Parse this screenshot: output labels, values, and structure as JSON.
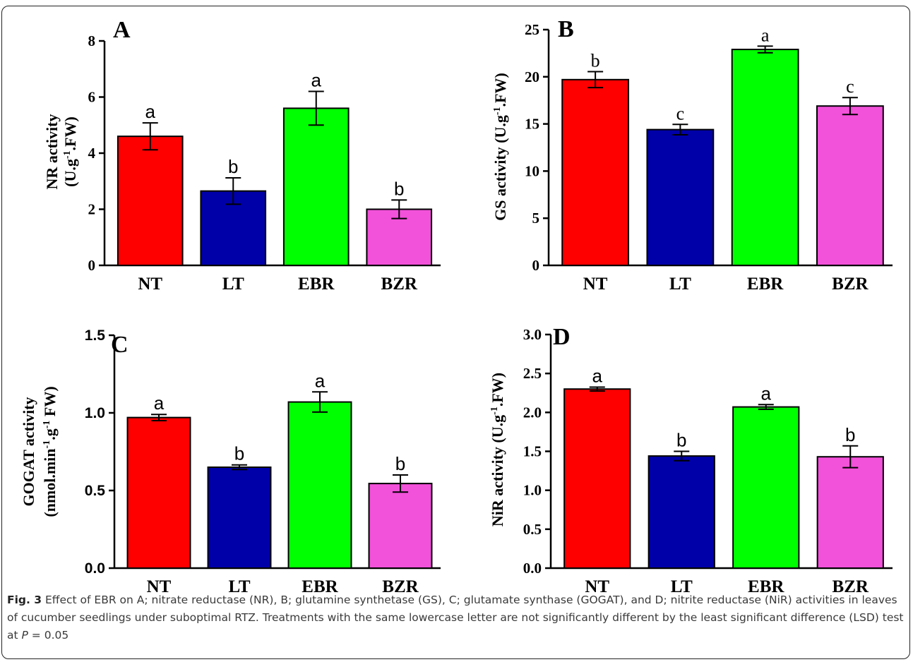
{
  "chart_data": [
    {
      "type": "bar",
      "panel_label": "A",
      "categories": [
        "NT",
        "LT",
        "EBR",
        "BZR"
      ],
      "values": [
        4.6,
        2.65,
        5.6,
        2.0
      ],
      "errors": [
        0.48,
        0.47,
        0.6,
        0.33
      ],
      "letters": [
        "a",
        "b",
        "a",
        "b"
      ],
      "colors": [
        "#fe0000",
        "#0000a9",
        "#00ff00",
        "#f251da"
      ],
      "ylabel_line1": "NR activity",
      "ylabel_line2_pre": "(U.g",
      "ylabel_line2_sup": "-1",
      "ylabel_line2_post": ".FW)",
      "ylim": [
        0,
        8
      ],
      "yticks": [
        0,
        2,
        4,
        6,
        8
      ],
      "tick_labels": [
        "0",
        "2",
        "4",
        "6",
        "8"
      ]
    },
    {
      "type": "bar",
      "panel_label": "B",
      "categories": [
        "NT",
        "LT",
        "EBR",
        "BZR"
      ],
      "values": [
        19.7,
        14.4,
        22.9,
        16.9
      ],
      "errors": [
        0.85,
        0.55,
        0.35,
        0.9
      ],
      "letters": [
        "b",
        "c",
        "a",
        "c"
      ],
      "colors": [
        "#fe0000",
        "#0000a9",
        "#00ff00",
        "#f251da"
      ],
      "ylabel_pre": "GS activity (U.g",
      "ylabel_sup": "-1",
      "ylabel_post": ".FW)",
      "ylim": [
        0,
        25
      ],
      "yticks": [
        0,
        5,
        10,
        15,
        20,
        25
      ],
      "tick_labels": [
        "0",
        "5",
        "10",
        "15",
        "20",
        "25"
      ]
    },
    {
      "type": "bar",
      "panel_label": "C",
      "categories": [
        "NT",
        "LT",
        "EBR",
        "BZR"
      ],
      "values": [
        0.97,
        0.65,
        1.07,
        0.545
      ],
      "errors": [
        0.02,
        0.015,
        0.065,
        0.055
      ],
      "letters": [
        "a",
        "b",
        "a",
        "b"
      ],
      "colors": [
        "#fe0000",
        "#0000a9",
        "#00ff00",
        "#f251da"
      ],
      "ylabel_line1": "GOGAT activity",
      "ylabel_line2_pre": "(nmol.min",
      "ylabel_line2_sup1": "-1",
      "ylabel_line2_mid": ".g",
      "ylabel_line2_sup2": "-1",
      "ylabel_line2_post": " FW)",
      "ylim": [
        0,
        1.5
      ],
      "yticks": [
        0,
        0.5,
        1.0,
        1.5
      ],
      "tick_labels": [
        "0.0",
        "0.5",
        "1.0",
        "1.5"
      ]
    },
    {
      "type": "bar",
      "panel_label": "D",
      "categories": [
        "NT",
        "LT",
        "EBR",
        "BZR"
      ],
      "values": [
        2.3,
        1.44,
        2.07,
        1.43
      ],
      "errors": [
        0.025,
        0.06,
        0.03,
        0.14
      ],
      "letters": [
        "a",
        "b",
        "a",
        "b"
      ],
      "colors": [
        "#fe0000",
        "#0000a9",
        "#00ff00",
        "#f251da"
      ],
      "ylabel_pre": "NiR activity (U.g",
      "ylabel_sup": "-1",
      "ylabel_post": ".FW)",
      "ylim": [
        0,
        3.0
      ],
      "yticks": [
        0,
        0.5,
        1.0,
        1.5,
        2.0,
        2.5,
        3.0
      ],
      "tick_labels": [
        "0.0",
        "0.5",
        "1.0",
        "1.5",
        "2.0",
        "2.5",
        "3.0"
      ]
    }
  ],
  "caption": {
    "fig_label": "Fig. 3",
    "text": " Effect of EBR on A; nitrate reductase (NR), B; glutamine synthetase (GS), C; glutamate synthase (GOGAT), and D; nitrite reductase (NiR) activities in leaves of cucumber seedlings under suboptimal RTZ. Treatments with the same lowercase letter are not significantly different by the least significant difference (LSD) test at ",
    "p_symbol": "P",
    "p_value": " = 0.05"
  }
}
